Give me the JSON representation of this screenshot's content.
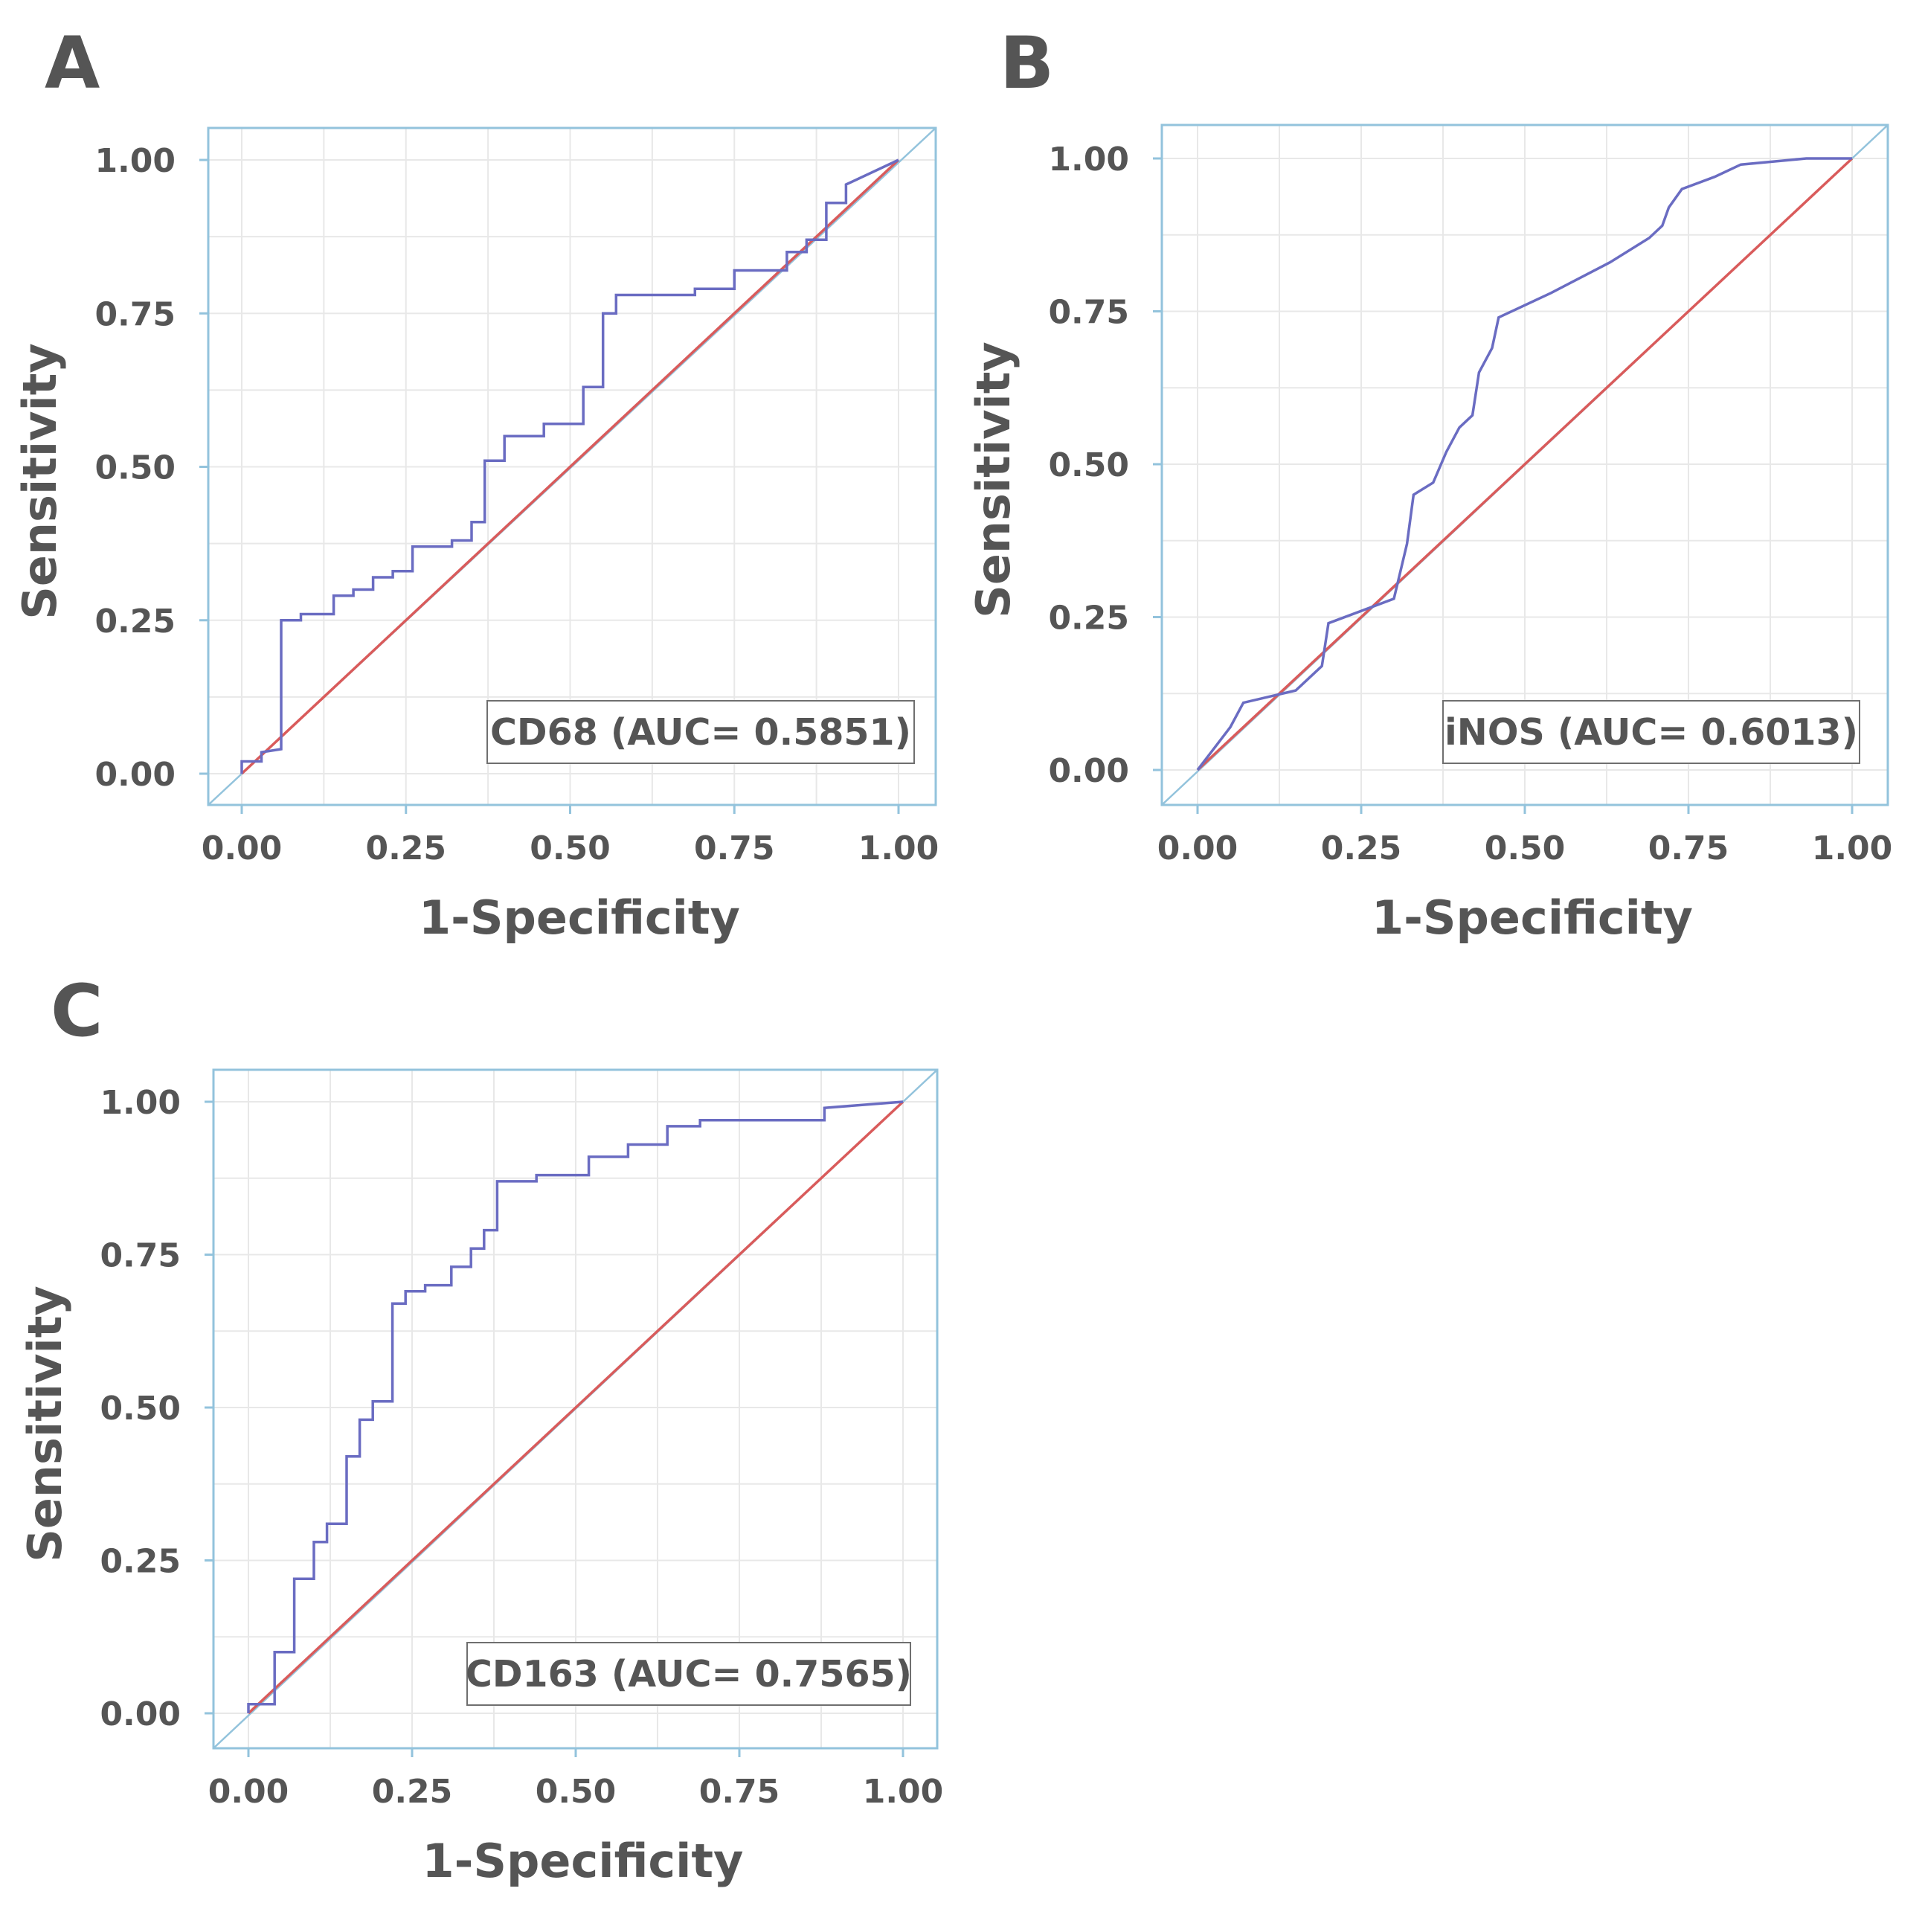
{
  "chart_data": [
    {
      "panel": "A",
      "type": "line",
      "title": "",
      "xlabel": "1-Specificity",
      "ylabel": "Sensitivity",
      "xlim": [
        0,
        1
      ],
      "ylim": [
        0,
        1
      ],
      "x_ticks": [
        "0.00",
        "0.25",
        "0.50",
        "0.75",
        "1.00"
      ],
      "y_ticks": [
        "0.00",
        "0.25",
        "0.50",
        "0.75",
        "1.00"
      ],
      "legend": "CD68 (AUC= 0.5851)",
      "legend_position": "bottom-right",
      "grid": true,
      "colors": {
        "roc": "#6a6cc2",
        "reference": "#d95b5b",
        "frame": "#93c3dc",
        "grid": "#e8e8e8"
      },
      "series": [
        {
          "name": "CD68",
          "x": [
            0,
            0,
            0.03,
            0.03,
            0.06,
            0.06,
            0.09,
            0.09,
            0.14,
            0.14,
            0.17,
            0.17,
            0.2,
            0.2,
            0.23,
            0.23,
            0.26,
            0.26,
            0.32,
            0.32,
            0.35,
            0.35,
            0.37,
            0.37,
            0.4,
            0.4,
            0.46,
            0.46,
            0.52,
            0.52,
            0.55,
            0.55,
            0.57,
            0.57,
            0.69,
            0.69,
            0.75,
            0.75,
            0.83,
            0.83,
            0.86,
            0.86,
            0.89,
            0.89,
            0.92,
            0.92,
            1
          ],
          "y": [
            0,
            0.02,
            0.02,
            0.035,
            0.04,
            0.25,
            0.25,
            0.26,
            0.26,
            0.29,
            0.29,
            0.3,
            0.3,
            0.32,
            0.32,
            0.33,
            0.33,
            0.37,
            0.37,
            0.38,
            0.38,
            0.41,
            0.41,
            0.51,
            0.51,
            0.55,
            0.55,
            0.57,
            0.57,
            0.63,
            0.63,
            0.75,
            0.75,
            0.78,
            0.78,
            0.79,
            0.79,
            0.82,
            0.82,
            0.85,
            0.85,
            0.87,
            0.87,
            0.93,
            0.93,
            0.96,
            1
          ]
        },
        {
          "name": "reference",
          "x": [
            0,
            1
          ],
          "y": [
            0,
            1
          ]
        }
      ]
    },
    {
      "panel": "B",
      "type": "line",
      "title": "",
      "xlabel": "1-Specificity",
      "ylabel": "Sensitivity",
      "xlim": [
        0,
        1
      ],
      "ylim": [
        0,
        1
      ],
      "x_ticks": [
        "0.00",
        "0.25",
        "0.50",
        "0.75",
        "1.00"
      ],
      "y_ticks": [
        "0.00",
        "0.25",
        "0.50",
        "0.75",
        "1.00"
      ],
      "legend": "iNOS (AUC= 0.6013)",
      "legend_position": "bottom-right",
      "grid": true,
      "colors": {
        "roc": "#6a6cc2",
        "reference": "#d95b5b",
        "frame": "#93c3dc",
        "grid": "#e8e8e8"
      },
      "series": [
        {
          "name": "iNOS",
          "x": [
            0,
            0.05,
            0.05,
            0.07,
            0.07,
            0.15,
            0.15,
            0.17,
            0.17,
            0.19,
            0.19,
            0.2,
            0.2,
            0.3,
            0.3,
            0.32,
            0.32,
            0.33,
            0.33,
            0.36,
            0.36,
            0.38,
            0.38,
            0.4,
            0.4,
            0.42,
            0.42,
            0.43,
            0.43,
            0.45,
            0.45,
            0.46,
            0.46,
            0.54,
            0.54,
            0.63,
            0.63,
            0.69,
            0.69,
            0.71,
            0.71,
            0.72,
            0.72,
            0.74,
            0.74,
            0.79,
            0.79,
            0.83,
            0.83,
            0.93,
            0.93,
            1
          ],
          "y": [
            0,
            0.07,
            0.07,
            0.11,
            0.11,
            0.13,
            0.13,
            0.15,
            0.15,
            0.17,
            0.17,
            0.24,
            0.24,
            0.28,
            0.28,
            0.37,
            0.37,
            0.45,
            0.45,
            0.47,
            0.47,
            0.52,
            0.52,
            0.56,
            0.56,
            0.58,
            0.58,
            0.65,
            0.65,
            0.69,
            0.69,
            0.74,
            0.74,
            0.78,
            0.78,
            0.83,
            0.83,
            0.87,
            0.87,
            0.89,
            0.89,
            0.92,
            0.92,
            0.95,
            0.95,
            0.97,
            0.97,
            0.99,
            0.99,
            1.0,
            1.0,
            1
          ]
        },
        {
          "name": "reference",
          "x": [
            0,
            1
          ],
          "y": [
            0,
            1
          ]
        }
      ]
    },
    {
      "panel": "C",
      "type": "line",
      "title": "",
      "xlabel": "1-Specificity",
      "ylabel": "Sensitivity",
      "xlim": [
        0,
        1
      ],
      "ylim": [
        0,
        1
      ],
      "x_ticks": [
        "0.00",
        "0.25",
        "0.50",
        "0.75",
        "1.00"
      ],
      "y_ticks": [
        "0.00",
        "0.25",
        "0.50",
        "0.75",
        "1.00"
      ],
      "legend": "CD163 (AUC= 0.7565)",
      "legend_position": "bottom-right",
      "grid": true,
      "colors": {
        "roc": "#6a6cc2",
        "reference": "#d95b5b",
        "frame": "#93c3dc",
        "grid": "#e8e8e8"
      },
      "series": [
        {
          "name": "CD163",
          "x": [
            0,
            0,
            0.04,
            0.04,
            0.07,
            0.07,
            0.1,
            0.1,
            0.12,
            0.12,
            0.15,
            0.15,
            0.17,
            0.17,
            0.19,
            0.19,
            0.22,
            0.22,
            0.24,
            0.24,
            0.27,
            0.27,
            0.31,
            0.31,
            0.34,
            0.34,
            0.36,
            0.36,
            0.38,
            0.38,
            0.44,
            0.44,
            0.52,
            0.52,
            0.58,
            0.58,
            0.64,
            0.64,
            0.69,
            0.69,
            0.88,
            0.88,
            1
          ],
          "y": [
            0,
            0.015,
            0.015,
            0.1,
            0.1,
            0.22,
            0.22,
            0.28,
            0.28,
            0.31,
            0.31,
            0.42,
            0.42,
            0.48,
            0.48,
            0.51,
            0.51,
            0.67,
            0.67,
            0.69,
            0.69,
            0.7,
            0.7,
            0.73,
            0.73,
            0.76,
            0.76,
            0.79,
            0.79,
            0.87,
            0.87,
            0.88,
            0.88,
            0.91,
            0.91,
            0.93,
            0.93,
            0.96,
            0.96,
            0.97,
            0.97,
            0.99,
            1
          ]
        },
        {
          "name": "reference",
          "x": [
            0,
            1
          ],
          "y": [
            0,
            1
          ]
        }
      ]
    }
  ]
}
